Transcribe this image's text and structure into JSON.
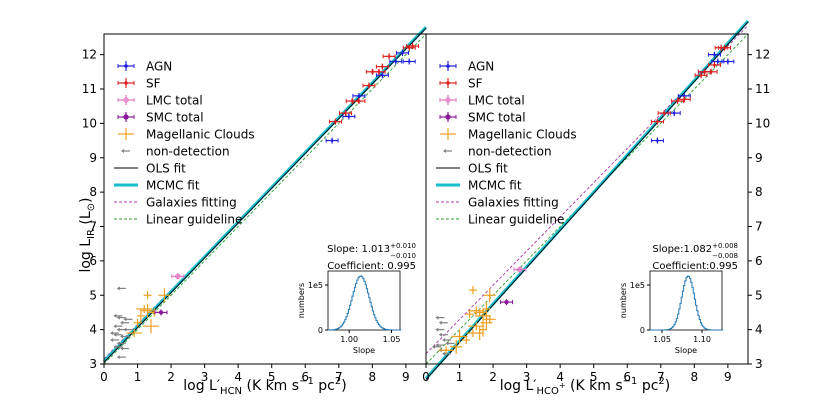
{
  "chart_data": [
    {
      "type": "scatter",
      "panel": "HCN",
      "xlabel_main": "log L′",
      "xlabel_sub": "HCN",
      "xlabel_units": " (K km s",
      "xlabel_exp": "−1",
      "xlabel_tail": " pc",
      "xlabel_tail_exp": "2",
      "xlabel_close": ")",
      "ylabel_main": "log L",
      "ylabel_sub": "IR",
      "ylabel_units": " (L",
      "ylabel_units_sub": "⊙",
      "ylabel_close": ")",
      "xlim": [
        0,
        9.6
      ],
      "ylim": [
        3,
        12.6
      ],
      "xticks": [
        0,
        1,
        2,
        3,
        4,
        5,
        6,
        7,
        8,
        9
      ],
      "yticks": [
        3,
        4,
        5,
        6,
        7,
        8,
        9,
        10,
        11,
        12
      ],
      "legend": [
        {
          "label": "AGN",
          "color": "#1f1fe0",
          "kind": "errbar"
        },
        {
          "label": "SF",
          "color": "#e01f1f",
          "kind": "errbar"
        },
        {
          "label": "LMC total",
          "color": "#e377c2",
          "kind": "errbar"
        },
        {
          "label": "SMC total",
          "color": "#8b1a9b",
          "kind": "errbar"
        },
        {
          "label": "Magellanic Clouds",
          "color": "#f0a020",
          "kind": "cross"
        },
        {
          "label": "non-detection",
          "color": "#808080",
          "kind": "arrow"
        },
        {
          "label": "OLS fit",
          "color": "#000000",
          "kind": "line"
        },
        {
          "label": "MCMC fit",
          "color": "#17becf",
          "kind": "thick"
        },
        {
          "label": "Galaxies fitting",
          "color": "#b030b0",
          "kind": "dash"
        },
        {
          "label": "Linear guideline",
          "color": "#2ca02c",
          "kind": "dash"
        }
      ],
      "fit_text": {
        "slope_prefix": "Slope: 1.013",
        "slope_up": "+0.010",
        "slope_down": "−0.010",
        "coef": "Coefficient: 0.995"
      },
      "inset": {
        "ylabel": "numbers",
        "xlabel": "Slope",
        "ytick0": "0",
        "ytick1": "1e5",
        "xticks": [
          "1.00",
          "1.05"
        ],
        "xlim": [
          0.975,
          1.06
        ],
        "peak": 1.013,
        "sigma": 0.01
      },
      "lines": {
        "ols": [
          [
            0,
            3.05
          ],
          [
            9.6,
            12.77
          ]
        ],
        "mcmc": [
          [
            0,
            3.08
          ],
          [
            9.6,
            12.8
          ]
        ],
        "galaxies": [
          [
            0,
            3.15
          ],
          [
            9.6,
            12.75
          ]
        ],
        "linear": [
          [
            0,
            3.0
          ],
          [
            9.6,
            12.6
          ]
        ]
      },
      "agn": [
        [
          6.8,
          9.5
        ],
        [
          7.3,
          10.2
        ],
        [
          7.6,
          10.8
        ],
        [
          8.3,
          11.4
        ],
        [
          8.7,
          11.8
        ],
        [
          8.9,
          12.05
        ],
        [
          9.1,
          11.8
        ]
      ],
      "sf": [
        [
          6.9,
          10.05
        ],
        [
          7.2,
          10.3
        ],
        [
          7.4,
          10.65
        ],
        [
          7.6,
          10.65
        ],
        [
          7.9,
          11.1
        ],
        [
          8.0,
          11.5
        ],
        [
          8.2,
          11.5
        ],
        [
          8.3,
          11.65
        ],
        [
          8.5,
          11.95
        ],
        [
          9.1,
          12.2
        ],
        [
          9.2,
          12.25
        ]
      ],
      "lmc": [
        [
          2.2,
          5.55
        ]
      ],
      "smc": [
        [
          1.7,
          4.5
        ]
      ],
      "mc": [
        [
          1.3,
          5.0
        ],
        [
          1.3,
          4.55
        ],
        [
          1.2,
          4.6
        ],
        [
          1.1,
          4.4
        ],
        [
          1.5,
          4.5
        ],
        [
          1.4,
          4.1
        ],
        [
          1.0,
          4.2
        ],
        [
          1.8,
          5.0
        ],
        [
          0.9,
          3.9
        ]
      ],
      "nondet": [
        [
          0.5,
          5.2
        ],
        [
          0.4,
          4.4
        ],
        [
          0.5,
          4.35
        ],
        [
          0.6,
          4.2
        ],
        [
          0.4,
          4.1
        ],
        [
          0.5,
          4.0
        ],
        [
          0.4,
          3.85
        ],
        [
          0.6,
          3.8
        ],
        [
          0.3,
          3.7
        ],
        [
          0.5,
          3.6
        ],
        [
          0.4,
          3.5
        ],
        [
          0.6,
          3.45
        ],
        [
          0.5,
          3.2
        ],
        [
          0.7,
          4.3
        ],
        [
          0.3,
          3.9
        ],
        [
          0.7,
          4.0
        ]
      ]
    },
    {
      "type": "scatter",
      "panel": "HCO+",
      "xlabel_main": "log L′",
      "xlabel_sub": "HCO",
      "xlabel_sub_sup": "+",
      "xlabel_units": " (K km s",
      "xlabel_exp": "−1",
      "xlabel_tail": " pc",
      "xlabel_tail_exp": "2",
      "xlabel_close": ")",
      "xlim": [
        0,
        9.6
      ],
      "ylim": [
        3,
        12.6
      ],
      "xticks": [
        0,
        1,
        2,
        3,
        4,
        5,
        6,
        7,
        8,
        9
      ],
      "yticks": [
        3,
        4,
        5,
        6,
        7,
        8,
        9,
        10,
        11,
        12
      ],
      "legend": [
        {
          "label": "AGN",
          "color": "#1f1fe0",
          "kind": "errbar"
        },
        {
          "label": "SF",
          "color": "#e01f1f",
          "kind": "errbar"
        },
        {
          "label": "LMC total",
          "color": "#e377c2",
          "kind": "errbar"
        },
        {
          "label": "SMC total",
          "color": "#8b1a9b",
          "kind": "errbar"
        },
        {
          "label": "Magellanic Clouds",
          "color": "#f0a020",
          "kind": "cross"
        },
        {
          "label": "non-detection",
          "color": "#808080",
          "kind": "arrow"
        },
        {
          "label": "OLS fit",
          "color": "#000000",
          "kind": "line"
        },
        {
          "label": "MCMC fit",
          "color": "#17becf",
          "kind": "thick"
        },
        {
          "label": "Galaxies fitting",
          "color": "#b030b0",
          "kind": "dash"
        },
        {
          "label": "Linear guideline",
          "color": "#2ca02c",
          "kind": "dash"
        }
      ],
      "fit_text": {
        "slope_prefix": "Slope:1.082",
        "slope_up": "+0.008",
        "slope_down": "−0.008",
        "coef": "Coefficient:0.995"
      },
      "inset": {
        "ylabel": "numbers",
        "xlabel": "Slope",
        "ytick0": "0",
        "ytick1": "1e5",
        "xticks": [
          "1.05",
          "1.10"
        ],
        "xlim": [
          1.035,
          1.125
        ],
        "peak": 1.082,
        "sigma": 0.008
      },
      "lines": {
        "ols": [
          [
            0,
            2.55
          ],
          [
            9.6,
            12.95
          ]
        ],
        "mcmc": [
          [
            0,
            2.58
          ],
          [
            9.6,
            12.98
          ]
        ],
        "galaxies": [
          [
            0,
            3.3
          ],
          [
            9.6,
            12.85
          ]
        ],
        "linear": [
          [
            0,
            3.0
          ],
          [
            9.6,
            12.6
          ]
        ]
      },
      "agn": [
        [
          6.9,
          9.5
        ],
        [
          7.4,
          10.3
        ],
        [
          7.7,
          10.8
        ],
        [
          8.3,
          11.5
        ],
        [
          8.6,
          12.0
        ],
        [
          8.7,
          11.8
        ],
        [
          9.0,
          11.8
        ]
      ],
      "sf": [
        [
          6.9,
          10.05
        ],
        [
          7.1,
          10.3
        ],
        [
          7.5,
          10.65
        ],
        [
          7.7,
          10.7
        ],
        [
          8.2,
          11.4
        ],
        [
          8.3,
          11.5
        ],
        [
          8.5,
          11.5
        ],
        [
          8.6,
          11.7
        ],
        [
          8.8,
          12.2
        ],
        [
          8.9,
          12.2
        ]
      ],
      "lmc": [
        [
          2.8,
          5.75
        ]
      ],
      "smc": [
        [
          2.4,
          4.8
        ]
      ],
      "mc": [
        [
          1.4,
          5.15
        ],
        [
          1.9,
          5.0
        ],
        [
          1.5,
          4.55
        ],
        [
          1.8,
          4.6
        ],
        [
          1.6,
          4.5
        ],
        [
          1.7,
          4.4
        ],
        [
          1.3,
          4.45
        ],
        [
          1.8,
          4.2
        ],
        [
          1.5,
          4.1
        ],
        [
          1.7,
          4.0
        ],
        [
          1.4,
          3.9
        ],
        [
          1.0,
          3.8
        ],
        [
          1.2,
          3.7
        ],
        [
          0.9,
          3.5
        ],
        [
          0.6,
          3.4
        ],
        [
          1.6,
          3.9
        ],
        [
          1.9,
          4.3
        ]
      ],
      "nondet": [
        [
          0.4,
          4.35
        ],
        [
          0.5,
          4.2
        ],
        [
          0.4,
          4.0
        ],
        [
          0.5,
          3.85
        ],
        [
          0.6,
          3.7
        ],
        [
          0.4,
          3.55
        ],
        [
          0.5,
          3.4
        ],
        [
          0.6,
          3.3
        ],
        [
          0.3,
          3.5
        ],
        [
          0.7,
          3.6
        ]
      ]
    }
  ]
}
